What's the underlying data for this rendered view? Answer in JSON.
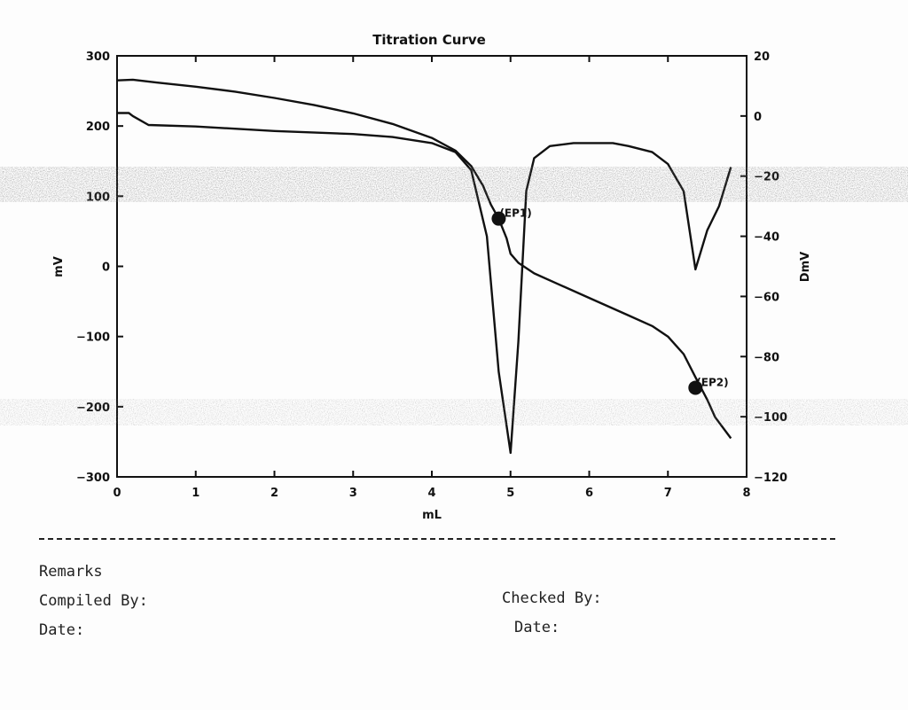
{
  "chart_data": {
    "type": "line",
    "title": "Titration Curve",
    "xlabel": "mL",
    "ylabel_left": "mV",
    "ylabel_right": "DmV",
    "xlim": [
      0,
      8
    ],
    "ylim_left": [
      -300,
      300
    ],
    "ylim_right": [
      -120,
      20
    ],
    "x_ticks": [
      0,
      1,
      2,
      3,
      4,
      5,
      6,
      7,
      8
    ],
    "y_left_ticks": [
      300,
      200,
      100,
      0,
      -100,
      -200,
      -300
    ],
    "y_right_ticks": [
      20,
      0,
      -20,
      -40,
      -60,
      -80,
      -100,
      -120
    ],
    "grid": false,
    "series": [
      {
        "axis": "left",
        "x": [
          0,
          0.2,
          0.5,
          1.0,
          1.5,
          2.0,
          2.5,
          3.0,
          3.5,
          4.0,
          4.3,
          4.5,
          4.65,
          4.75,
          4.85,
          4.95,
          5.0,
          5.1,
          5.3,
          5.6,
          6.0,
          6.5,
          6.8,
          7.0,
          7.2,
          7.35,
          7.5,
          7.6,
          7.8
        ],
        "y": [
          265,
          266,
          262,
          256,
          249,
          240,
          230,
          218,
          203,
          183,
          165,
          143,
          115,
          88,
          68,
          40,
          18,
          5,
          -10,
          -25,
          -45,
          -70,
          -85,
          -100,
          -125,
          -158,
          -190,
          -215,
          -245
        ]
      },
      {
        "axis": "right",
        "x": [
          0,
          0.15,
          0.2,
          0.4,
          1.0,
          2.0,
          3.0,
          3.5,
          4.0,
          4.3,
          4.5,
          4.7,
          4.85,
          5.0,
          5.1,
          5.2,
          5.3,
          5.5,
          5.8,
          6.3,
          6.5,
          6.8,
          7.0,
          7.2,
          7.35,
          7.5,
          7.65,
          7.8
        ],
        "y": [
          1,
          1,
          0,
          -3,
          -3.5,
          -5,
          -6,
          -7,
          -9,
          -12,
          -18,
          -40,
          -85,
          -112,
          -75,
          -25,
          -14,
          -10,
          -9,
          -9,
          -10,
          -12,
          -16,
          -25,
          -51,
          -38,
          -30,
          -17
        ]
      }
    ],
    "annotations": [
      {
        "label": "(EP1)",
        "x": 4.85,
        "y": 68,
        "axis": "left"
      },
      {
        "label": "(EP2)",
        "x": 7.35,
        "y": -173,
        "axis": "left"
      }
    ]
  },
  "form": {
    "remarks_label": "Remarks",
    "compiled_by_label": "Compiled By:",
    "checked_by_label": "Checked By:",
    "date_label_left": "Date:",
    "date_label_right": "Date:"
  }
}
